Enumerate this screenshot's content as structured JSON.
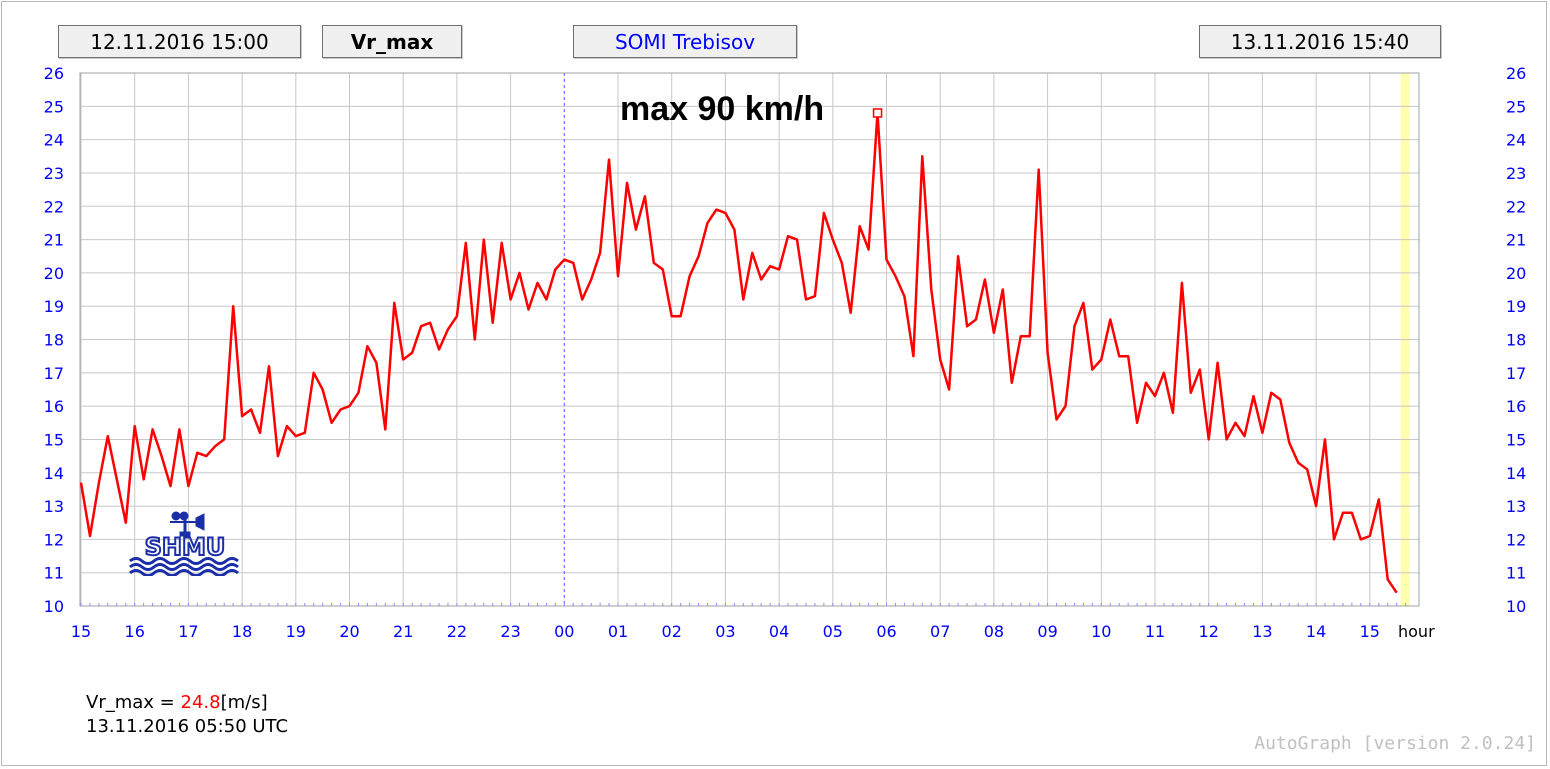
{
  "header": {
    "start_time": "12.11.2016 15:00",
    "parameter": "Vr_max",
    "station": "SOMI Trebisov",
    "end_time": "13.11.2016 15:40"
  },
  "readout": {
    "name": "Vr_max",
    "eq": "=",
    "value": "24.8",
    "unit": "[m/s]",
    "timestamp": "13.11.2016 05:50 UTC"
  },
  "footer": {
    "version": "AutoGraph [version 2.0.24]"
  },
  "logo": {
    "text": "SHMU"
  },
  "icons": {
    "logo": "shmu-logo-icon",
    "max-marker": "square-marker-icon"
  },
  "colors": {
    "series": "#ff0000",
    "ticks": "#0000ff",
    "grid": "#c8c8c8",
    "current": "#ffffb0"
  },
  "chart_data": {
    "type": "line",
    "annotation": "max 90 km/h",
    "x_unit": "hour",
    "x_ticks": [
      "15",
      "16",
      "17",
      "18",
      "19",
      "20",
      "21",
      "22",
      "23",
      "00",
      "01",
      "02",
      "03",
      "04",
      "05",
      "06",
      "07",
      "08",
      "09",
      "10",
      "11",
      "12",
      "13",
      "14",
      "15"
    ],
    "y_ticks": [
      10,
      11,
      12,
      13,
      14,
      15,
      16,
      17,
      18,
      19,
      20,
      21,
      22,
      23,
      24,
      25,
      26
    ],
    "ylim": [
      10,
      26
    ],
    "grid": true,
    "day_boundary": "00",
    "current_time_band": "15:40",
    "series": [
      {
        "x_start": "12.11.2016 15:00",
        "step_minutes": 10,
        "values": [
          13.7,
          12.1,
          13.7,
          15.1,
          13.8,
          12.5,
          15.4,
          13.8,
          15.3,
          14.5,
          13.6,
          15.3,
          13.6,
          14.6,
          14.5,
          14.8,
          15.0,
          19.0,
          15.7,
          15.9,
          15.2,
          17.2,
          14.5,
          15.4,
          15.1,
          15.2,
          17.0,
          16.5,
          15.5,
          15.9,
          16.0,
          16.4,
          17.8,
          17.3,
          15.3,
          19.1,
          17.4,
          17.6,
          18.4,
          18.5,
          17.7,
          18.3,
          18.7,
          20.9,
          18.0,
          21.0,
          18.5,
          20.9,
          19.2,
          20.0,
          18.9,
          19.7,
          19.2,
          20.1,
          20.4,
          20.3,
          19.2,
          19.8,
          20.6,
          23.4,
          19.9,
          22.7,
          21.3,
          22.3,
          20.3,
          20.1,
          18.7,
          18.7,
          19.9,
          20.5,
          21.5,
          21.9,
          21.8,
          21.3,
          19.2,
          20.6,
          19.8,
          20.2,
          20.1,
          21.1,
          21.0,
          19.2,
          19.3,
          21.8,
          21.0,
          20.3,
          18.8,
          21.4,
          20.7,
          24.8,
          20.4,
          19.9,
          19.3,
          17.5,
          23.5,
          19.5,
          17.4,
          16.5,
          20.5,
          18.4,
          18.6,
          19.8,
          18.2,
          19.5,
          16.7,
          18.1,
          18.1,
          23.1,
          17.6,
          15.6,
          16.0,
          18.4,
          19.1,
          17.1,
          17.4,
          18.6,
          17.5,
          17.5,
          15.5,
          16.7,
          16.3,
          17.0,
          15.8,
          19.7,
          16.4,
          17.1,
          15.0,
          17.3,
          15.0,
          15.5,
          15.1,
          16.3,
          15.2,
          16.4,
          16.2,
          14.9,
          14.3,
          14.1,
          13.0,
          15.0,
          12.0,
          12.8,
          12.8,
          12.0,
          12.1,
          13.2,
          10.8,
          10.4
        ]
      }
    ]
  }
}
